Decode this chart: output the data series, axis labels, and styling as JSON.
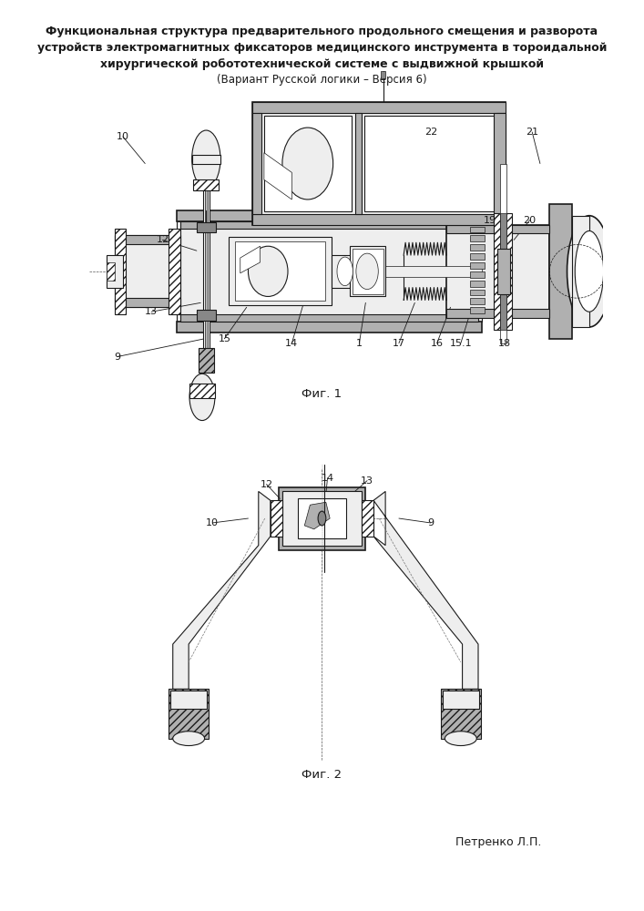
{
  "title_line1": "Функциональная структура предварительного продольного смещения и разворота",
  "title_line2": "устройств электромагнитных фиксаторов медицинского инструмента в тороидальной",
  "title_line3": "хирургической робототехнической системе с выдвижной крышкой",
  "title_line4": "(Вариант Русской логики – Версия 6)",
  "fig1_label": "Фиг. 1",
  "fig2_label": "Фиг. 2",
  "author": "Петренко Л.П.",
  "bg_color": "#ffffff",
  "line_color": "#1a1a1a",
  "gray_dark": "#888888",
  "gray_mid": "#b0b0b0",
  "gray_light": "#d8d8d8",
  "gray_xlight": "#eeeeee"
}
